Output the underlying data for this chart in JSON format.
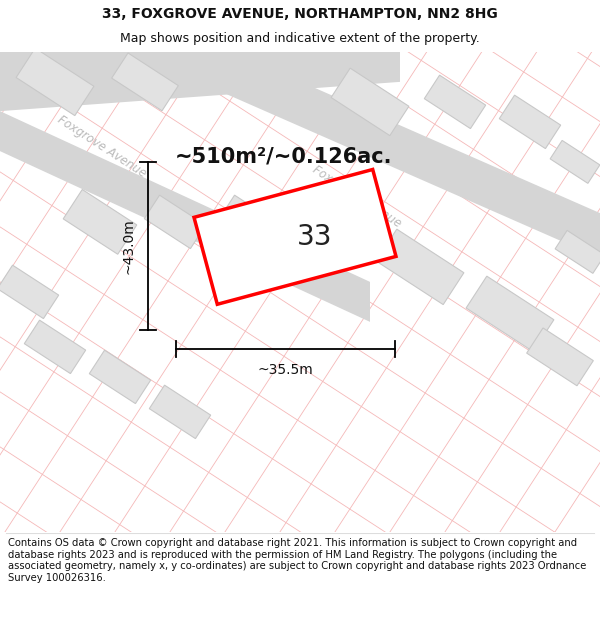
{
  "title_line1": "33, FOXGROVE AVENUE, NORTHAMPTON, NN2 8HG",
  "title_line2": "Map shows position and indicative extent of the property.",
  "footer_text": "Contains OS data © Crown copyright and database right 2021. This information is subject to Crown copyright and database rights 2023 and is reproduced with the permission of HM Land Registry. The polygons (including the associated geometry, namely x, y co-ordinates) are subject to Crown copyright and database rights 2023 Ordnance Survey 100026316.",
  "area_label": "~510m²/~0.126ac.",
  "number_label": "33",
  "width_label": "~35.5m",
  "height_label": "~43.0m",
  "bg_color": "#ffffff",
  "map_bg": "#ffffff",
  "road_color": "#d5d5d5",
  "building_color": "#e2e2e2",
  "grid_line_color": "#f5b8b8",
  "highlight_color": "#ff0000",
  "road_label_color": "#bbbbbb",
  "title_fontsize": 10,
  "subtitle_fontsize": 9,
  "footer_fontsize": 7.2,
  "area_fontsize": 15,
  "number_fontsize": 20,
  "dim_fontsize": 10,
  "road_label_fontsize": 8.5
}
